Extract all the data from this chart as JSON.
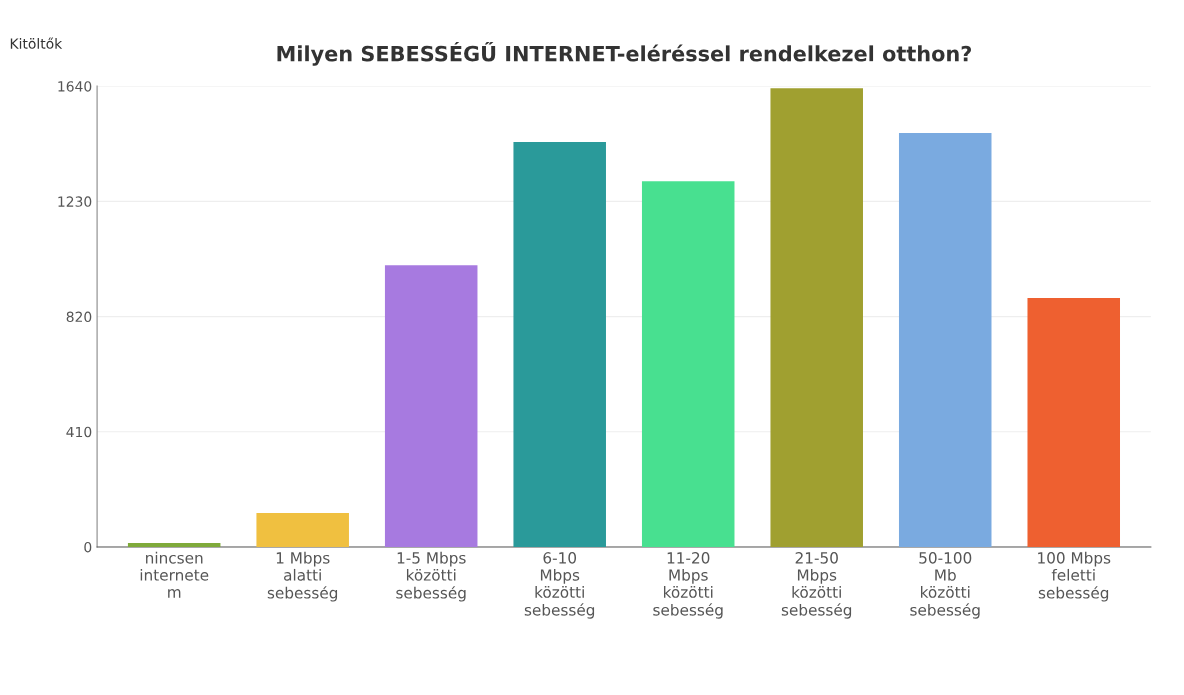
{
  "chart_data": {
    "type": "bar",
    "title": "Milyen SEBESSÉGŰ INTERNET-eléréssel rendelkezel otthon?",
    "ylabel": "Kitöltők",
    "categories": [
      "nincsen\ninternete\nm",
      "1 Mbps\nalatti\nsebesség",
      "1-5 Mbps\nközötti\nsebesség",
      "6-10\nMbps\nközötti\nsebesség",
      "11-20\nMbps\nközötti\nsebesség",
      "21-50\nMbps\nközötti\nsebesség",
      "50-100\nMb\nközötti\nsebesség",
      "100 Mbps\nfeletti\nsebesség"
    ],
    "values": [
      14,
      121,
      1003,
      1441,
      1302,
      1633,
      1473,
      886
    ],
    "colors": [
      "#7faa3a",
      "#f0c040",
      "#a77ae0",
      "#2a9a9a",
      "#48e090",
      "#a0a030",
      "#7aaae0",
      "#ee6030"
    ],
    "ylim": [
      0,
      1640
    ],
    "yticks": [
      0,
      410,
      820,
      1230,
      1640
    ],
    "grid": "y"
  }
}
